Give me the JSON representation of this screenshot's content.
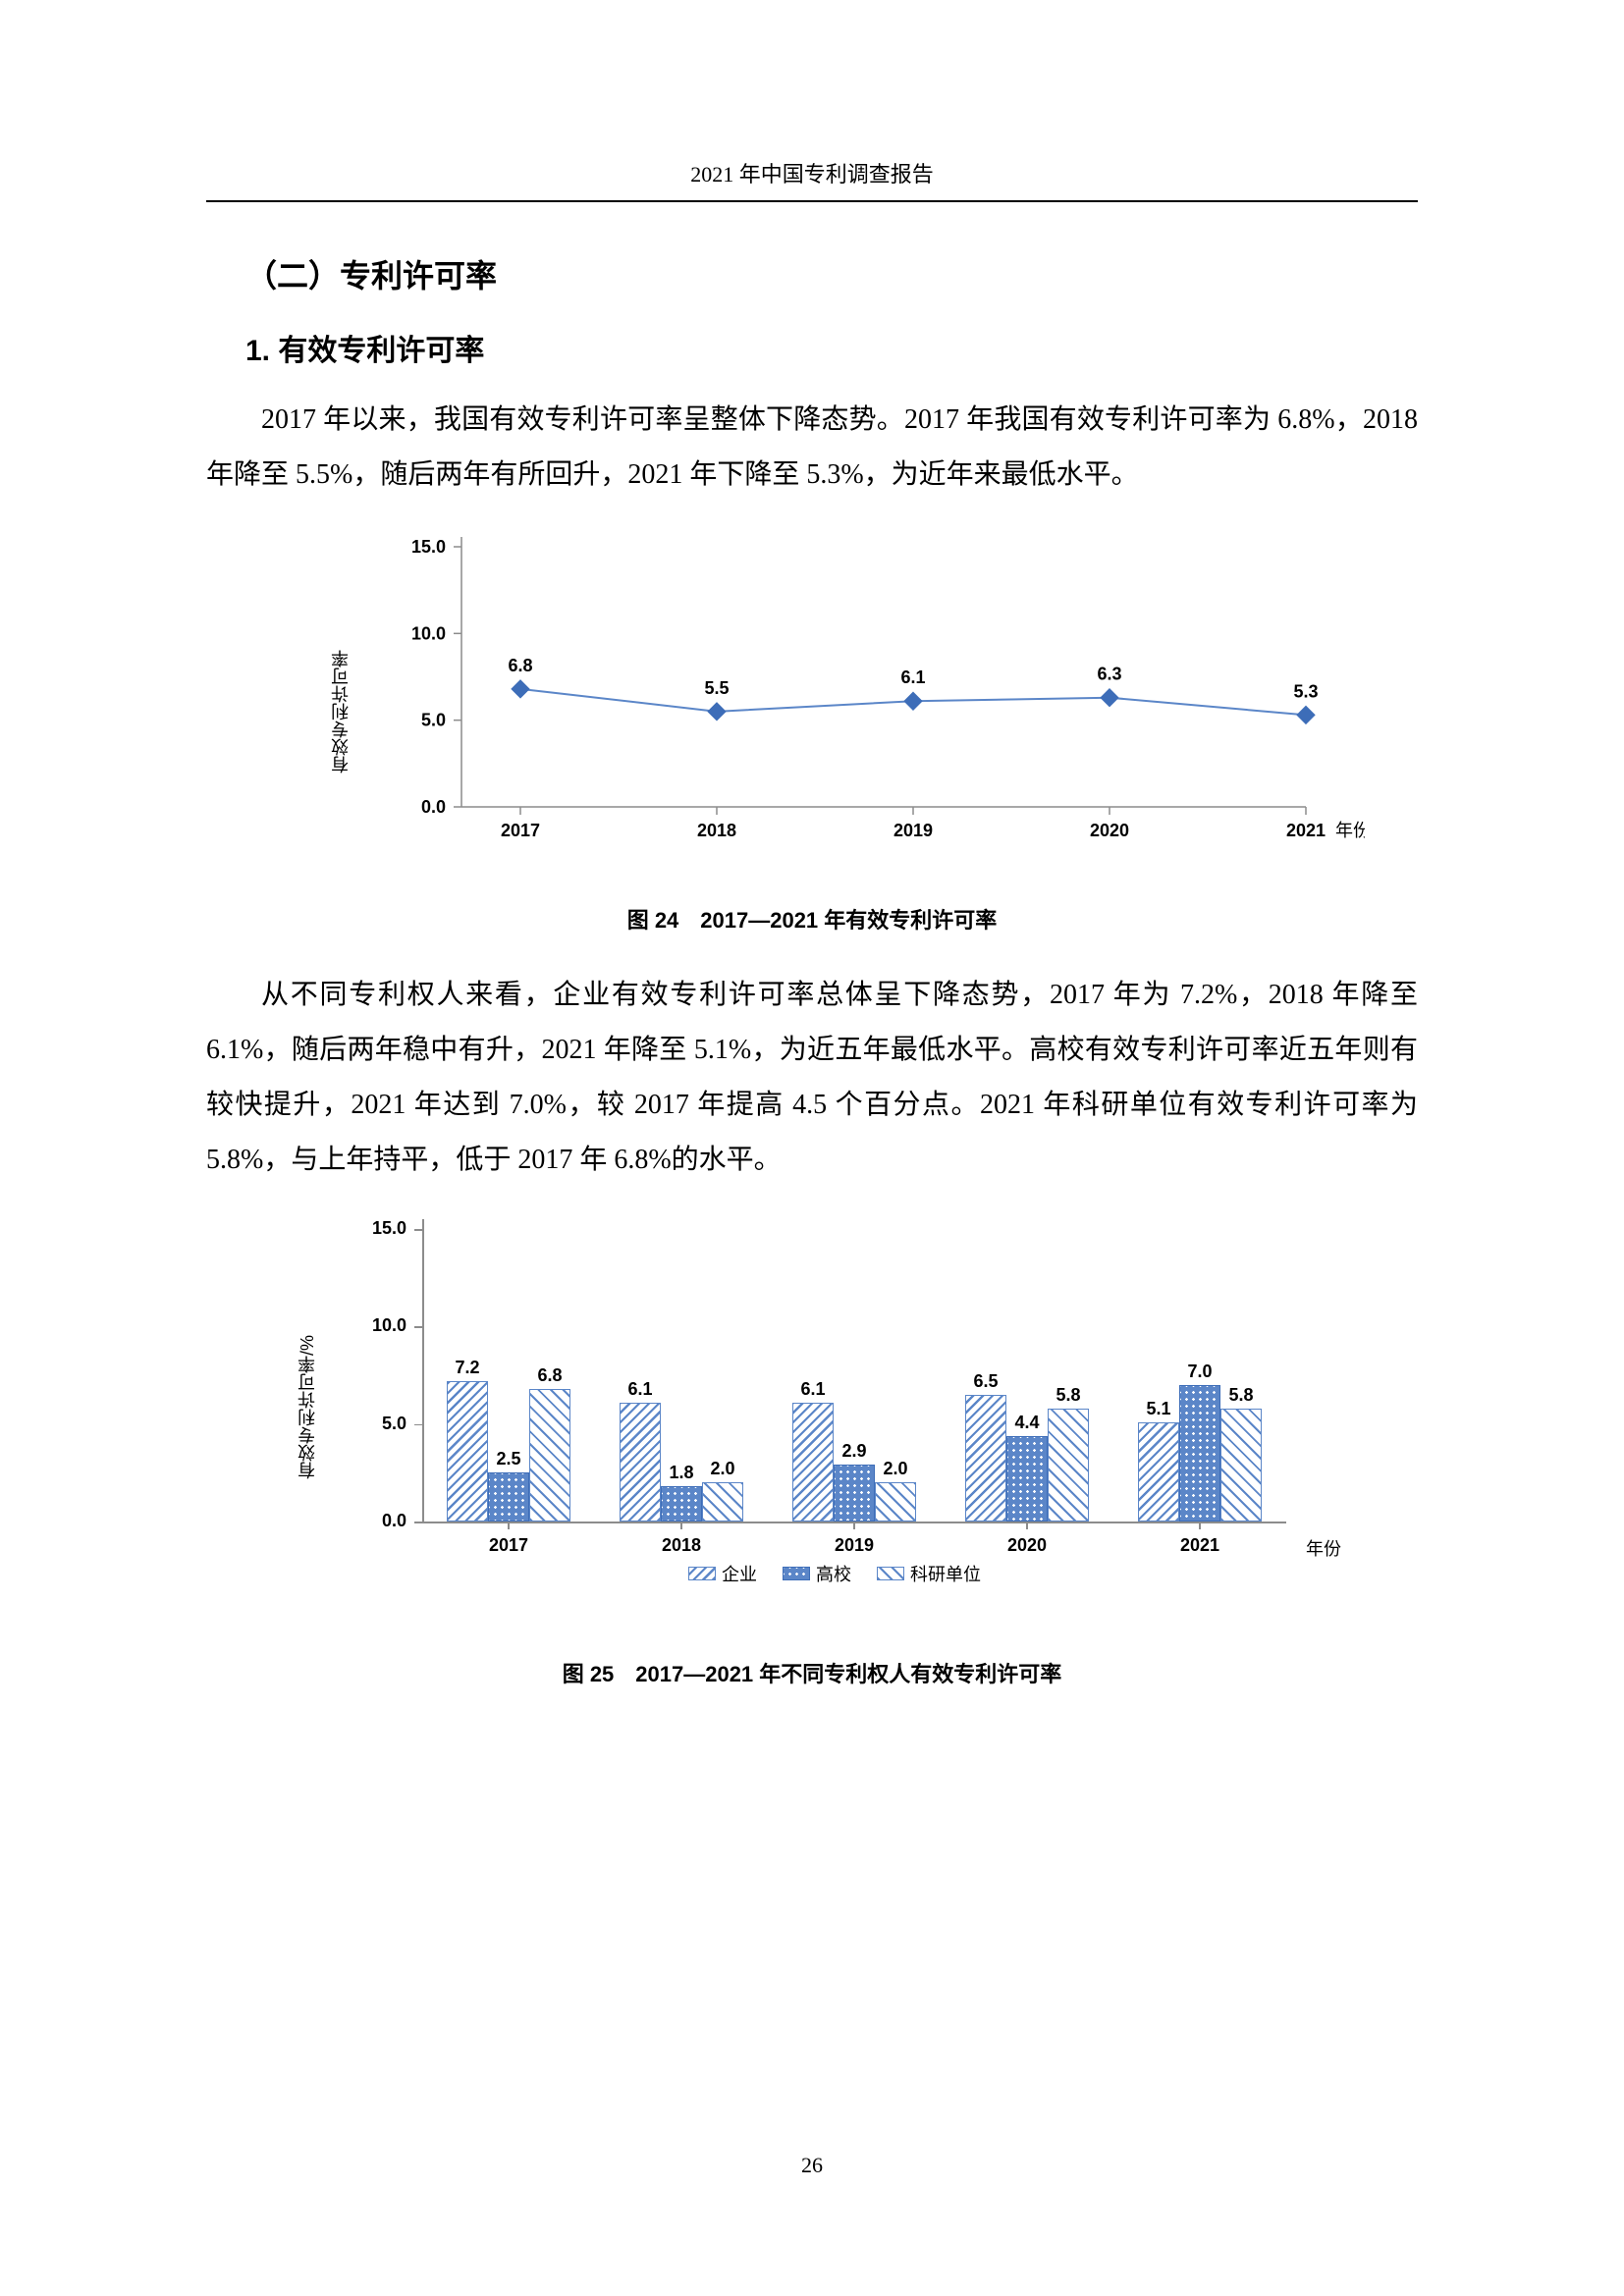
{
  "header": "2021 年中国专利调查报告",
  "page_number": "26",
  "h2": "（二）专利许可率",
  "h3": "1. 有效专利许可率",
  "para1": "2017 年以来，我国有效专利许可率呈整体下降态势。2017 年我国有效专利许可率为 6.8%，2018 年降至 5.5%，随后两年有所回升，2021 年下降至 5.3%，为近年来最低水平。",
  "fig24_caption": "图 24　2017—2021 年有效专利许可率",
  "para2": "从不同专利权人来看，企业有效专利许可率总体呈下降态势，2017 年为 7.2%，2018 年降至 6.1%，随后两年稳中有升，2021 年降至 5.1%，为近五年最低水平。高校有效专利许可率近五年则有较快提升，2021 年达到 7.0%，较 2017 年提高 4.5 个百分点。2021 年科研单位有效专利许可率为 5.8%，与上年持平，低于 2017 年 6.8%的水平。",
  "fig25_caption": "图 25　2017—2021 年不同专利权人有效专利许可率",
  "chart1": {
    "type": "line",
    "ylabel": "有效专利许可率",
    "xaxis_label": "年份",
    "categories": [
      "2017",
      "2018",
      "2019",
      "2020",
      "2021"
    ],
    "values": [
      6.8,
      5.5,
      6.1,
      6.3,
      5.3
    ],
    "ylim": [
      0,
      15
    ],
    "ytick_step": 5,
    "line_color": "#5b86c8",
    "marker_color": "#3d6db8",
    "text_color": "#000000",
    "axis_color": "#8c8c8c",
    "background_color": "#ffffff",
    "label_fontsize": 18,
    "marker": "diamond",
    "marker_size": 9,
    "line_width": 2
  },
  "chart2": {
    "type": "grouped-bar",
    "ylabel": "有效专利许可率/%",
    "xaxis_label": "年份",
    "categories": [
      "2017",
      "2018",
      "2019",
      "2020",
      "2021"
    ],
    "series": [
      {
        "name": "企业",
        "pattern": "diag-hatch",
        "values": [
          7.2,
          6.1,
          6.1,
          6.5,
          5.1
        ]
      },
      {
        "name": "高校",
        "pattern": "dots-fill",
        "values": [
          2.5,
          1.8,
          2.9,
          4.4,
          7.0
        ]
      },
      {
        "name": "科研单位",
        "pattern": "outline-diag",
        "values": [
          6.8,
          2.0,
          2.0,
          5.8,
          5.8
        ]
      }
    ],
    "ylim": [
      0,
      15
    ],
    "ytick_step": 5,
    "text_color": "#000000",
    "axis_color": "#8c8c8c",
    "label_fontsize": 18,
    "bar_color_primary": "#5b86c8",
    "legend_labels": {
      "s1": "企业",
      "s2": "高校",
      "s3": "科研单位"
    }
  }
}
